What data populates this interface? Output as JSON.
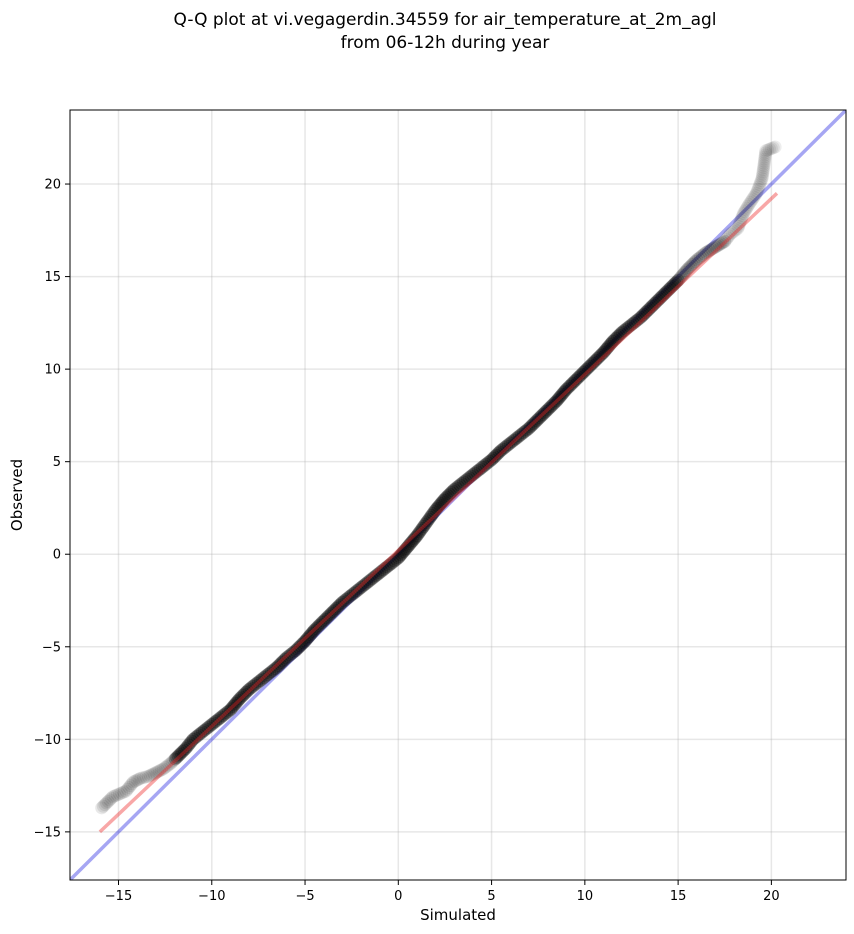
{
  "chart_data": {
    "type": "scatter",
    "title_lines": [
      "Q-Q plot at vi.vegagerdin.34559 for air_temperature_at_2m_agl",
      "from 06-12h during year"
    ],
    "xlabel": "Simulated",
    "ylabel": "Observed",
    "xlim": [
      -17.6,
      24.0
    ],
    "ylim": [
      -17.6,
      24.0
    ],
    "xticks": [
      -15,
      -10,
      -5,
      0,
      5,
      10,
      15,
      20
    ],
    "yticks": [
      -15,
      -10,
      -5,
      0,
      5,
      10,
      15,
      20
    ],
    "xtick_labels": [
      "−15",
      "−10",
      "−5",
      "0",
      "5",
      "10",
      "15",
      "20"
    ],
    "ytick_labels": [
      "−15",
      "−10",
      "−5",
      "0",
      "5",
      "10",
      "15",
      "20"
    ],
    "grid": true,
    "reference_line": {
      "slope": 1.0,
      "intercept": 0.0,
      "color": "#0000dd"
    },
    "fit_line": {
      "x": [
        -16.0,
        20.3
      ],
      "y": [
        -15.0,
        19.5
      ],
      "color": "#ee2222"
    },
    "point_color": "#000000",
    "series": [
      {
        "points": [
          [
            -15.9,
            -13.7
          ],
          [
            -15.3,
            -13.1
          ],
          [
            -14.6,
            -12.8
          ],
          [
            -14.2,
            -12.3
          ],
          [
            -13.8,
            -12.1
          ],
          [
            -13.4,
            -12.0
          ],
          [
            -13.0,
            -11.8
          ],
          [
            -12.6,
            -11.6
          ],
          [
            -12.2,
            -11.3
          ],
          [
            -11.8,
            -10.9
          ],
          [
            -11.4,
            -10.5
          ],
          [
            -11.0,
            -10.0
          ],
          [
            -10.5,
            -9.6
          ],
          [
            -10.0,
            -9.2
          ],
          [
            -9.5,
            -8.8
          ],
          [
            -9.0,
            -8.4
          ],
          [
            -8.5,
            -7.8
          ],
          [
            -8.0,
            -7.3
          ],
          [
            -7.5,
            -6.9
          ],
          [
            -7.0,
            -6.5
          ],
          [
            -6.5,
            -6.1
          ],
          [
            -6.0,
            -5.6
          ],
          [
            -5.5,
            -5.2
          ],
          [
            -5.0,
            -4.7
          ],
          [
            -4.5,
            -4.1
          ],
          [
            -4.0,
            -3.6
          ],
          [
            -3.5,
            -3.1
          ],
          [
            -3.0,
            -2.6
          ],
          [
            -2.5,
            -2.2
          ],
          [
            -2.0,
            -1.8
          ],
          [
            -1.5,
            -1.4
          ],
          [
            -1.0,
            -1.0
          ],
          [
            -0.5,
            -0.6
          ],
          [
            0.0,
            -0.2
          ],
          [
            0.5,
            0.4
          ],
          [
            1.0,
            1.0
          ],
          [
            1.5,
            1.7
          ],
          [
            2.0,
            2.4
          ],
          [
            2.5,
            3.0
          ],
          [
            3.0,
            3.5
          ],
          [
            3.5,
            3.9
          ],
          [
            4.0,
            4.3
          ],
          [
            4.5,
            4.7
          ],
          [
            5.0,
            5.1
          ],
          [
            5.5,
            5.6
          ],
          [
            6.0,
            6.0
          ],
          [
            6.5,
            6.4
          ],
          [
            7.0,
            6.8
          ],
          [
            7.5,
            7.3
          ],
          [
            8.0,
            7.8
          ],
          [
            8.5,
            8.3
          ],
          [
            9.0,
            8.9
          ],
          [
            9.5,
            9.4
          ],
          [
            10.0,
            9.9
          ],
          [
            10.5,
            10.4
          ],
          [
            11.0,
            10.9
          ],
          [
            11.5,
            11.5
          ],
          [
            12.0,
            12.0
          ],
          [
            12.5,
            12.4
          ],
          [
            13.0,
            12.8
          ],
          [
            13.5,
            13.3
          ],
          [
            14.0,
            13.8
          ],
          [
            14.5,
            14.3
          ],
          [
            15.0,
            14.8
          ],
          [
            15.5,
            15.4
          ],
          [
            16.0,
            15.9
          ],
          [
            16.5,
            16.3
          ],
          [
            17.0,
            16.6
          ],
          [
            17.5,
            16.9
          ],
          [
            17.8,
            17.3
          ],
          [
            18.2,
            17.6
          ],
          [
            18.5,
            18.4
          ],
          [
            18.8,
            18.9
          ],
          [
            19.2,
            19.5
          ],
          [
            19.5,
            20.3
          ],
          [
            19.6,
            21.0
          ],
          [
            19.7,
            21.8
          ],
          [
            20.2,
            22.0
          ]
        ]
      }
    ]
  }
}
